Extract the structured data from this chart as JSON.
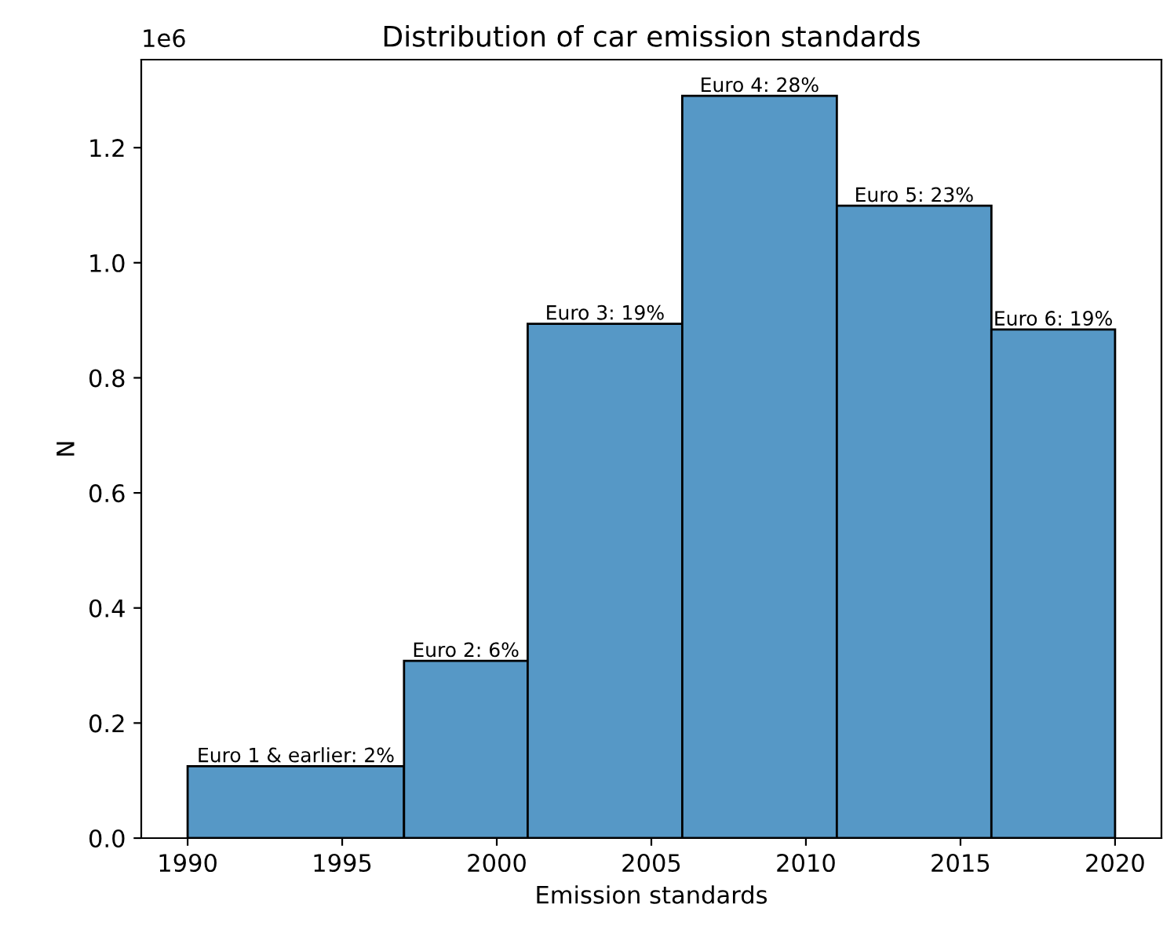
{
  "chart_data": {
    "type": "histogram",
    "title": "Distribution of car emission standards",
    "xlabel": "Emission standards",
    "ylabel": "N",
    "bins": [
      1990,
      1997,
      2001,
      2006,
      2011,
      2016,
      2020
    ],
    "values": [
      0.125,
      0.308,
      0.894,
      1.29,
      1.099,
      0.884
    ],
    "color": "#5698c6",
    "xlim": [
      1988.5,
      2021.5
    ],
    "xticks": [
      1990,
      1995,
      2000,
      2005,
      2010,
      2015,
      2020
    ],
    "ylim": [
      0,
      1.353
    ],
    "yticks": [
      {
        "value": 0,
        "label": "0.0"
      },
      0.2,
      0.4,
      0.6,
      0.8,
      {
        "value": 1,
        "label": "1.0"
      },
      1.2
    ],
    "annotations": [
      "1e6",
      {
        "text": "Euro 1 & earlier: 2%",
        "x": 1993.5,
        "y": 0.125
      },
      {
        "text": "Euro 2: 6%",
        "x": 1999,
        "y": 0.308
      },
      {
        "text": "Euro 3: 19%",
        "x": 2003.5,
        "y": 0.894
      },
      {
        "text": "Euro 4: 28%",
        "x": 2008.5,
        "y": 1.29
      },
      {
        "text": "Euro 5: 23%",
        "x": 2013.5,
        "y": 1.099
      },
      {
        "text": "Euro 6: 19%",
        "x": 2018,
        "y": 0.884
      }
    ]
  }
}
